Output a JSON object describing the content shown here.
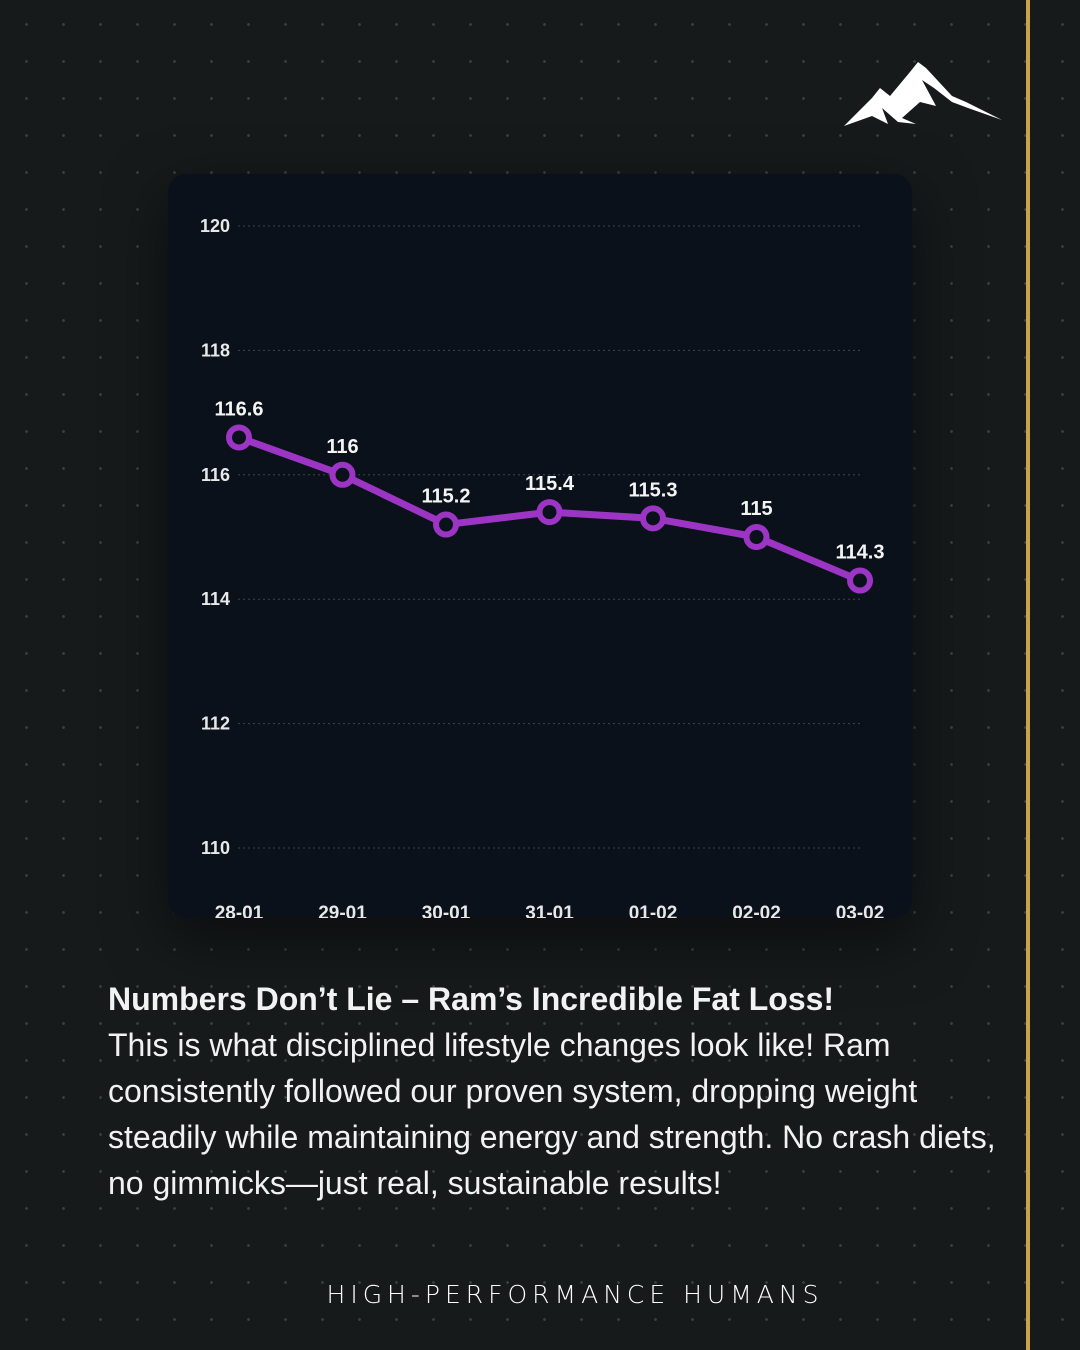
{
  "chart_data": {
    "type": "line",
    "title": "",
    "xlabel": "",
    "ylabel": "",
    "categories": [
      "28-01",
      "29-01",
      "30-01",
      "31-01",
      "01-02",
      "02-02",
      "03-02"
    ],
    "values": [
      116.6,
      116,
      115.2,
      115.4,
      115.3,
      115,
      114.3
    ],
    "data_labels": [
      "116.6",
      "116",
      "115.2",
      "115.4",
      "115.3",
      "115",
      "114.3"
    ],
    "yticks": [
      "110",
      "112",
      "114",
      "116",
      "118",
      "120"
    ],
    "ylim": [
      110,
      120
    ],
    "grid": true,
    "legend": "none",
    "line_color": "#9c35c4"
  },
  "headline": "Numbers Don’t Lie – Ram’s Incredible Fat Loss!",
  "body": "This is what disciplined lifestyle changes look like! Ram consistently followed our proven system, dropping weight steadily while maintaining energy and strength. No crash diets, no gimmicks—just real, sustainable results!",
  "brand": "HIGH-PERFORMANCE HUMANS",
  "logo_icon": "mountain-icon",
  "accent": "#c9a24a"
}
